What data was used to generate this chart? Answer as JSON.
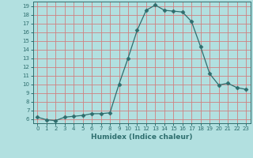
{
  "x": [
    0,
    1,
    2,
    3,
    4,
    5,
    6,
    7,
    8,
    9,
    10,
    11,
    12,
    13,
    14,
    15,
    16,
    17,
    18,
    19,
    20,
    21,
    22,
    23
  ],
  "y": [
    6.2,
    5.9,
    5.8,
    6.2,
    6.3,
    6.4,
    6.6,
    6.6,
    6.7,
    10.0,
    13.0,
    16.2,
    18.5,
    19.1,
    18.5,
    18.4,
    18.3,
    17.2,
    14.3,
    11.2,
    9.9,
    10.1,
    9.6,
    9.4
  ],
  "line_color": "#2e6e6e",
  "marker": "D",
  "marker_size": 2.5,
  "bg_color": "#b2e0e0",
  "grid_color": "#d08080",
  "xlabel": "Humidex (Indice chaleur)",
  "ylim": [
    5.5,
    19.5
  ],
  "xlim": [
    -0.5,
    23.5
  ],
  "yticks": [
    6,
    7,
    8,
    9,
    10,
    11,
    12,
    13,
    14,
    15,
    16,
    17,
    18,
    19
  ],
  "xticks": [
    0,
    1,
    2,
    3,
    4,
    5,
    6,
    7,
    8,
    9,
    10,
    11,
    12,
    13,
    14,
    15,
    16,
    17,
    18,
    19,
    20,
    21,
    22,
    23
  ],
  "tick_color": "#2e6e6e",
  "label_color": "#2e6e6e",
  "spine_color": "#2e6e6e",
  "tick_fontsize": 5.0,
  "xlabel_fontsize": 6.5
}
